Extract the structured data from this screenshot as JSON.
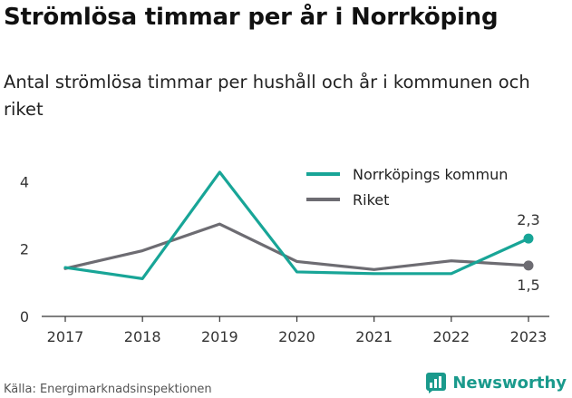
{
  "title": "Strömlösa timmar per år i Norrköping",
  "subtitle": "Antal strömlösa timmar per hushåll och år i kommunen och riket",
  "source": "Källa: Energimarknadsinspektionen",
  "brand": "Newsworthy",
  "colors": {
    "teal": "#18a597",
    "gray": "#6d6c72",
    "axis": "#333333",
    "brand": "#1a9a8c"
  },
  "chart_data": {
    "type": "line",
    "x": [
      "2017",
      "2018",
      "2019",
      "2020",
      "2021",
      "2022",
      "2023"
    ],
    "ylim": [
      0,
      4.6
    ],
    "yticks": [
      0,
      2,
      4
    ],
    "grid": false,
    "legend": "top-right",
    "series": [
      {
        "name": "Norrköpings kommun",
        "values": [
          1.45,
          1.12,
          4.28,
          1.32,
          1.27,
          1.27,
          2.31
        ],
        "end_label": "2,3"
      },
      {
        "name": "Riket",
        "values": [
          1.42,
          1.95,
          2.74,
          1.63,
          1.39,
          1.65,
          1.51
        ],
        "end_label": "1,5"
      }
    ]
  }
}
